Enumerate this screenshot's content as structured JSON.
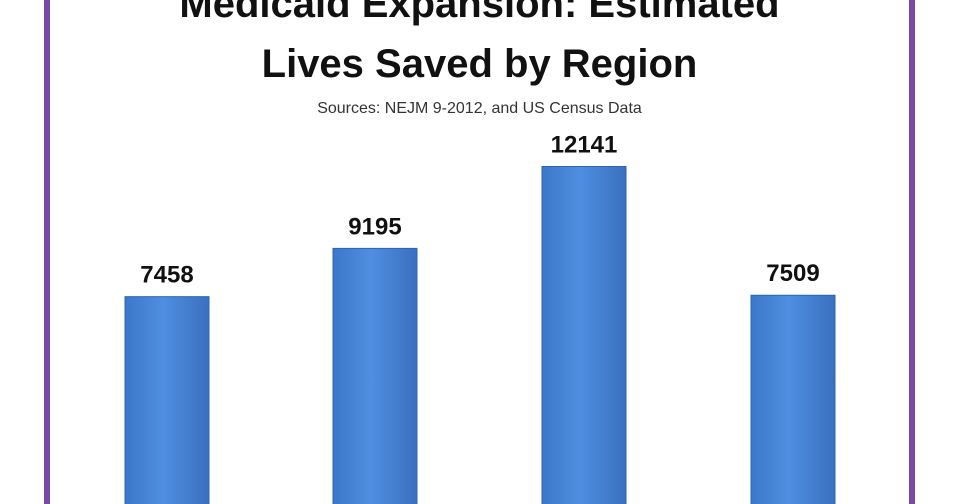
{
  "chart_data": {
    "type": "bar",
    "title": "Medicaid Expansion: Estimated Lives Saved by Region",
    "subtitle": "Sources: NEJM 9-2012, and US Census Data",
    "categories": [
      "",
      "",
      "",
      ""
    ],
    "values": [
      7458,
      9195,
      12141,
      7509
    ],
    "data_labels": [
      "7458",
      "9195",
      "12141",
      "7509"
    ],
    "grid": false,
    "legend": "none"
  },
  "title_lines": [
    "Medicaid Expansion: Estimated",
    "Lives Saved by Region"
  ],
  "colors": {
    "bar": "#4a86d8",
    "bar_edge": "#2f63b0",
    "frame": "#7a4aa8"
  }
}
